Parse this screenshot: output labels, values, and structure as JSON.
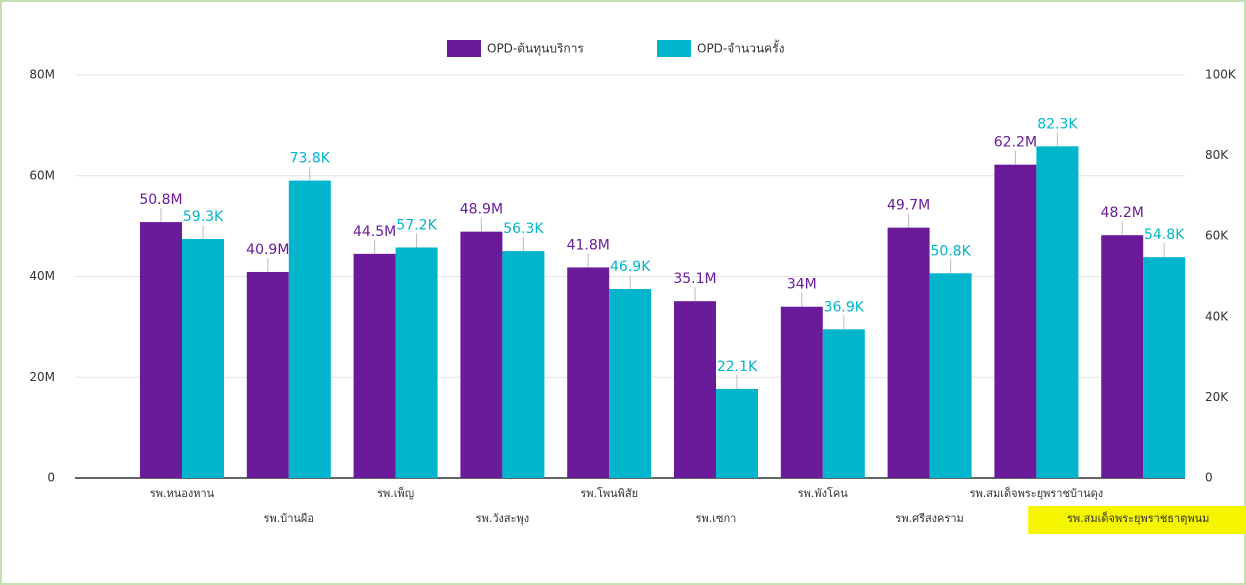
{
  "chart_data": {
    "type": "bar",
    "categories": [
      "รพ.หนองหาน",
      "รพ.บ้านผือ",
      "รพ.เพ็ญ",
      "รพ.วังสะพุง",
      "รพ.โพนพิสัย",
      "รพ.เซกา",
      "รพ.พังโคน",
      "รพ.ศรีสงคราม",
      "รพ.สมเด็จพระยุพราชบ้านดุง",
      "รพ.สมเด็จพระยุพราชธาตุพนม"
    ],
    "series": [
      {
        "name": "OPD-ต้นทุนบริการ",
        "color": "#6a1b9a",
        "axis": "y",
        "values": [
          50800000,
          40900000,
          44500000,
          48900000,
          41800000,
          35100000,
          34000000,
          49700000,
          62200000,
          48200000
        ],
        "value_labels": [
          "50.8M",
          "40.9M",
          "44.5M",
          "48.9M",
          "41.8M",
          "35.1M",
          "34M",
          "49.7M",
          "62.2M",
          "48.2M"
        ]
      },
      {
        "name": "OPD-จำนวนครั้ง",
        "color": "#00b5cc",
        "axis": "y2",
        "values": [
          59300,
          73800,
          57200,
          56300,
          46900,
          22100,
          36900,
          50800,
          82300,
          54800
        ],
        "value_labels": [
          "59.3K",
          "73.8K",
          "57.2K",
          "56.3K",
          "46.9K",
          "22.1K",
          "36.9K",
          "50.8K",
          "82.3K",
          "54.8K"
        ]
      }
    ],
    "ylim": [
      0,
      80000000
    ],
    "yticks": [
      0,
      {
        "value": 20000000,
        "label": "20M"
      },
      {
        "value": 40000000,
        "label": "40M"
      },
      {
        "value": 60000000,
        "label": "60M"
      },
      {
        "value": 80000000,
        "label": "80M"
      }
    ],
    "y2lim": [
      0,
      100000
    ],
    "y2ticks": [
      0,
      {
        "value": 20000,
        "label": "20K"
      },
      {
        "value": 40000,
        "label": "40K"
      },
      {
        "value": 60000,
        "label": "60K"
      },
      {
        "value": 80000,
        "label": "80K"
      },
      {
        "value": 100000,
        "label": "100K"
      }
    ],
    "grid": true,
    "legend": "top"
  }
}
